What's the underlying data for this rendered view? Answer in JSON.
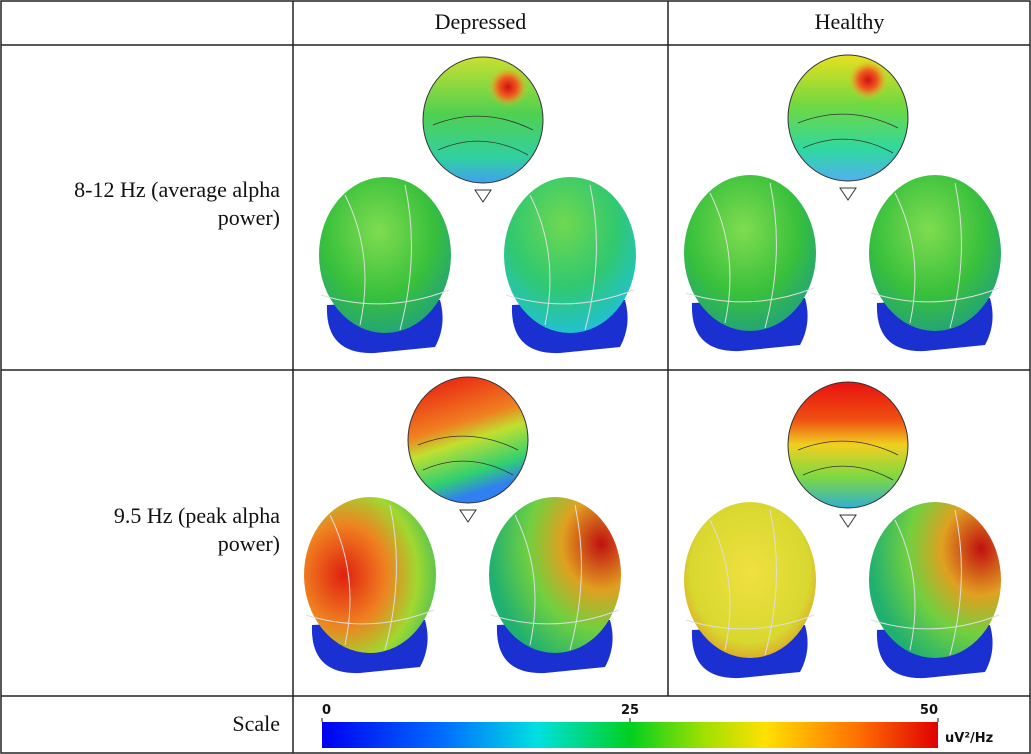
{
  "table": {
    "columns": [
      "Depressed",
      "Healthy"
    ],
    "rows": [
      {
        "label": "8-12 Hz (average alpha power)"
      },
      {
        "label": "9.5 Hz (peak alpha power)"
      }
    ],
    "scale": {
      "label": "Scale",
      "lim": [
        0,
        50
      ],
      "ticks": [
        0,
        25,
        50
      ],
      "unit": "uV²/Hz"
    }
  }
}
